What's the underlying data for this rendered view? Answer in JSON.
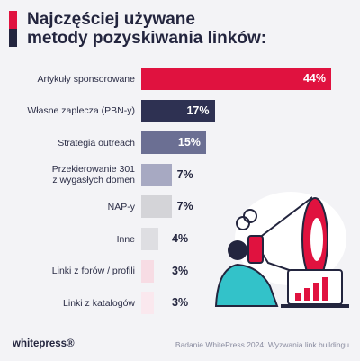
{
  "chart_data": {
    "type": "bar",
    "orientation": "horizontal",
    "title": "Najczęściej używane\nmetody pozyskiwania linków:",
    "categories": [
      "Artykuły sponsorowane",
      "Własne zaplecza (PBN-y)",
      "Strategia outreach",
      "Przekierowanie 301\nz wygasłych domen",
      "NAP-y",
      "Inne",
      "Linki z forów / profili",
      "Linki z katalogów"
    ],
    "values": [
      44,
      17,
      15,
      7,
      7,
      4,
      3,
      3
    ],
    "value_labels": [
      "44%",
      "17%",
      "15%",
      "7%",
      "7%",
      "4%",
      "3%",
      "3%"
    ],
    "colors": [
      "#e0123f",
      "#2e3152",
      "#6b6f93",
      "#a7a9c2",
      "#d4d4d8",
      "#dedee2",
      "#f7dce4",
      "#fae8ee"
    ],
    "source": "Badanie WhitePress 2024: Wyzwania link buildingu",
    "logo": "whitepress®"
  }
}
